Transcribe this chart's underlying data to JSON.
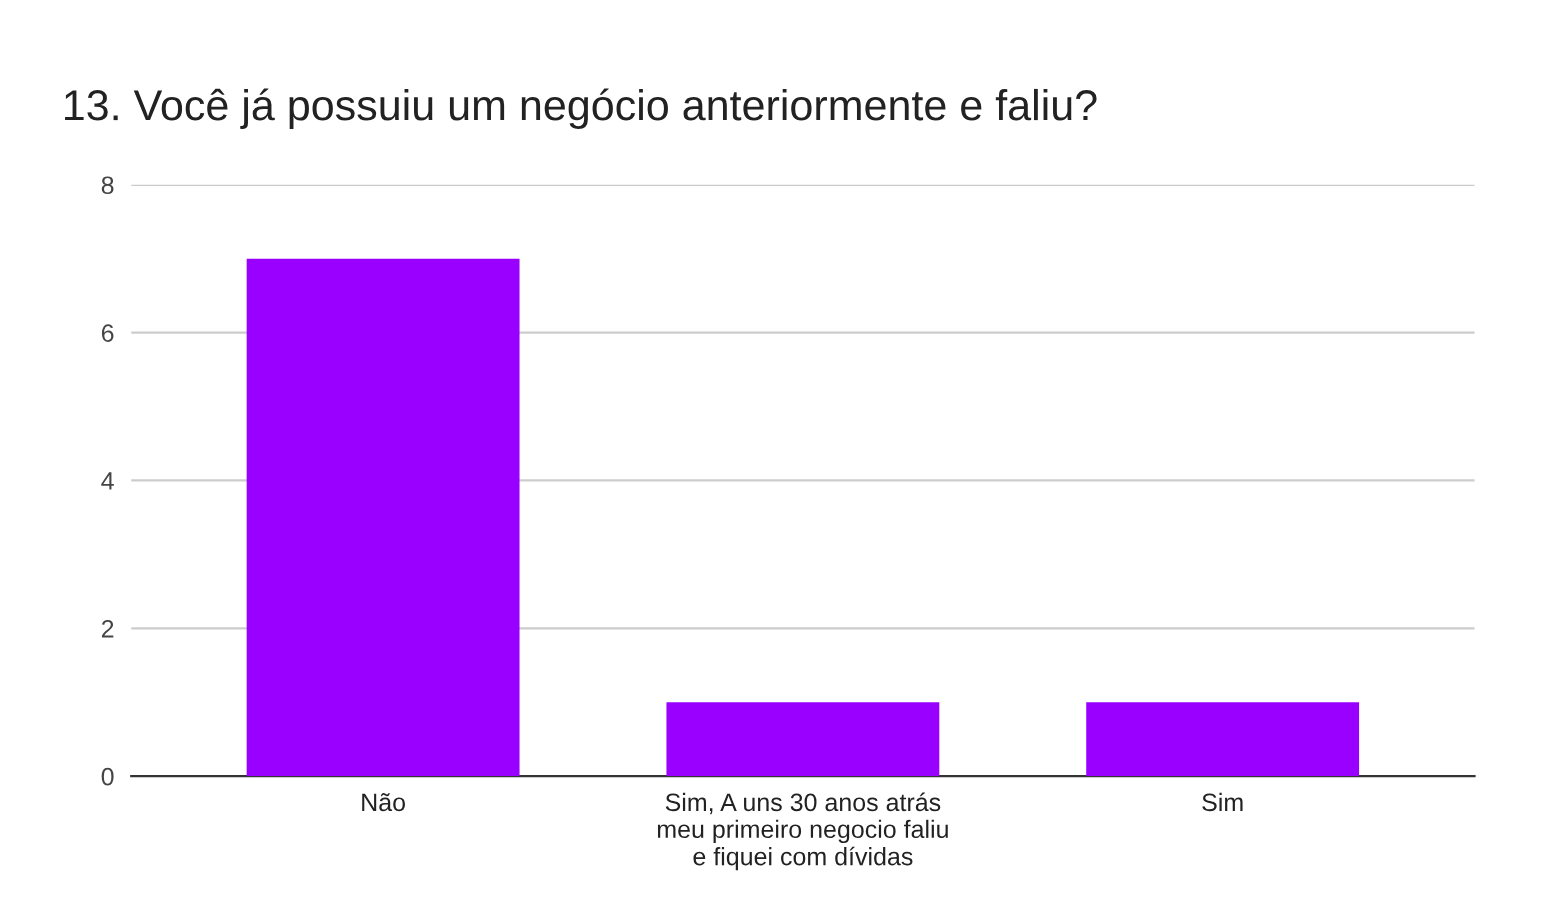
{
  "chart_data": {
    "type": "bar",
    "title": "13. Você já possuiu um negócio anteriormente e faliu?",
    "categories": [
      "Não",
      "Sim, A uns 30 anos atrás\nmeu primeiro negocio faliu\ne fiquei com dívidas",
      "Sim"
    ],
    "values": [
      7,
      1,
      1
    ],
    "color": "#9900ff",
    "ylim": [
      0,
      8
    ],
    "yticks": [
      0,
      2,
      4,
      6,
      8
    ],
    "grid": "y"
  }
}
